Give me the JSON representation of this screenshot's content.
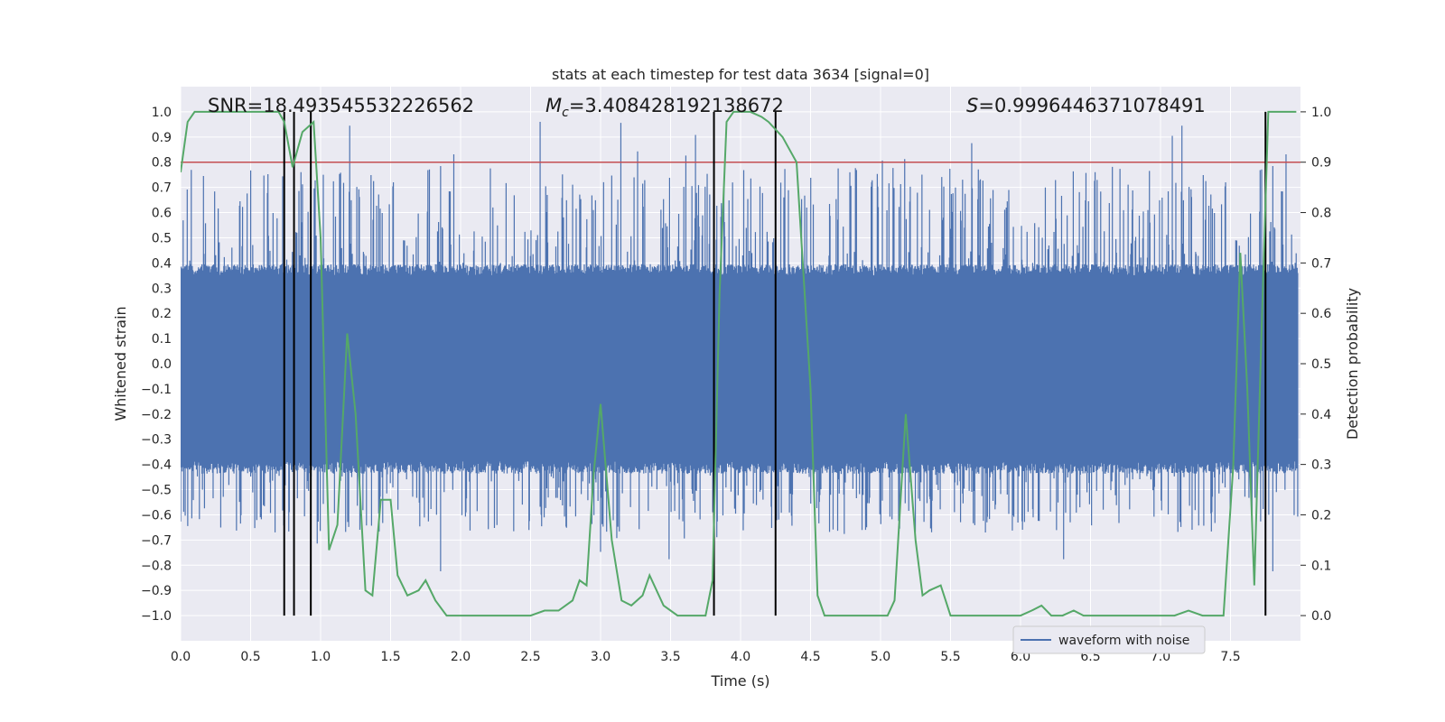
{
  "chart_data": {
    "type": "line",
    "title": "stats at each timestep for test data 3634 [signal=0]",
    "xlabel": "Time (s)",
    "ylabel_left": "Whitened strain",
    "ylabel_right": "Detection probability",
    "xlim": [
      0.0,
      8.0
    ],
    "ylim_left": [
      -1.1,
      1.1
    ],
    "ylim_right": [
      -0.05,
      1.05
    ],
    "x_ticks": [
      "0.0",
      "0.5",
      "1.0",
      "1.5",
      "2.0",
      "2.5",
      "3.0",
      "3.5",
      "4.0",
      "4.5",
      "5.0",
      "5.5",
      "6.0",
      "6.5",
      "7.0",
      "7.5"
    ],
    "y_left_ticks": [
      "1.0",
      "0.9",
      "0.8",
      "0.7",
      "0.6",
      "0.5",
      "0.4",
      "0.3",
      "0.2",
      "0.1",
      "0.0",
      "-0.1",
      "-0.2",
      "-0.3",
      "-0.4",
      "-0.5",
      "-0.6",
      "-0.7",
      "-0.8",
      "-0.9",
      "-1.0"
    ],
    "y_right_ticks": [
      "1.0",
      "0.9",
      "0.8",
      "0.7",
      "0.6",
      "0.5",
      "0.4",
      "0.3",
      "0.2",
      "0.1",
      "0.0"
    ],
    "annotations": {
      "snr": "SNR=18.493545532226562",
      "mc_symbol": "M",
      "mc_subscript": "c",
      "mc_value": "=3.408428192138672",
      "s_symbol": "S",
      "s_value": "=0.9996446371078491"
    },
    "legend": {
      "label": "waveform with noise",
      "position": "lower-right"
    },
    "threshold": {
      "value": 0.9,
      "axis": "right",
      "color": "#c44e52"
    },
    "vertical_markers": [
      0.74,
      0.81,
      0.93,
      3.81,
      4.25,
      7.75
    ],
    "series": [
      {
        "name": "waveform with noise",
        "axis": "left",
        "color": "#4c72b0",
        "kind": "noise",
        "envelope_upper": 0.38,
        "envelope_lower": -0.42,
        "spike_max": 0.97,
        "spike_min": -0.85
      },
      {
        "name": "detection probability",
        "axis": "right",
        "color": "#55a868",
        "x": [
          0.0,
          0.05,
          0.1,
          0.2,
          0.3,
          0.4,
          0.5,
          0.6,
          0.7,
          0.74,
          0.8,
          0.87,
          0.95,
          1.0,
          1.06,
          1.12,
          1.19,
          1.25,
          1.32,
          1.37,
          1.43,
          1.5,
          1.55,
          1.62,
          1.7,
          1.75,
          1.82,
          1.9,
          2.0,
          2.1,
          2.2,
          2.3,
          2.4,
          2.5,
          2.6,
          2.7,
          2.8,
          2.85,
          2.9,
          2.95,
          3.0,
          3.08,
          3.15,
          3.22,
          3.3,
          3.35,
          3.45,
          3.55,
          3.6,
          3.7,
          3.75,
          3.8,
          3.85,
          3.9,
          3.95,
          4.0,
          4.07,
          4.15,
          4.2,
          4.3,
          4.4,
          4.5,
          4.55,
          4.6,
          4.7,
          4.8,
          4.9,
          5.0,
          5.05,
          5.1,
          5.18,
          5.25,
          5.3,
          5.35,
          5.43,
          5.5,
          5.6,
          5.7,
          5.8,
          5.9,
          6.0,
          6.08,
          6.15,
          6.22,
          6.3,
          6.38,
          6.45,
          6.5,
          6.6,
          6.7,
          6.8,
          6.9,
          7.0,
          7.1,
          7.2,
          7.3,
          7.35,
          7.45,
          7.52,
          7.57,
          7.62,
          7.67,
          7.72,
          7.77,
          7.8,
          7.9,
          7.97
        ],
        "y": [
          0.88,
          0.98,
          1.0,
          1.0,
          1.0,
          1.0,
          1.0,
          1.0,
          1.0,
          0.98,
          0.89,
          0.96,
          0.98,
          0.75,
          0.13,
          0.18,
          0.56,
          0.4,
          0.05,
          0.04,
          0.23,
          0.23,
          0.08,
          0.04,
          0.05,
          0.07,
          0.03,
          0.0,
          0.0,
          0.0,
          0.0,
          0.0,
          0.0,
          0.0,
          0.01,
          0.01,
          0.03,
          0.07,
          0.06,
          0.28,
          0.42,
          0.15,
          0.03,
          0.02,
          0.04,
          0.08,
          0.02,
          0.0,
          0.0,
          0.0,
          0.0,
          0.07,
          0.64,
          0.98,
          1.0,
          1.0,
          1.0,
          0.99,
          0.98,
          0.95,
          0.9,
          0.45,
          0.04,
          0.0,
          0.0,
          0.0,
          0.0,
          0.0,
          0.0,
          0.03,
          0.4,
          0.15,
          0.04,
          0.05,
          0.06,
          0.0,
          0.0,
          0.0,
          0.0,
          0.0,
          0.0,
          0.01,
          0.02,
          0.0,
          0.0,
          0.01,
          0.0,
          0.0,
          0.0,
          0.0,
          0.0,
          0.0,
          0.0,
          0.0,
          0.01,
          0.0,
          0.0,
          0.0,
          0.3,
          0.72,
          0.45,
          0.06,
          0.55,
          1.0,
          1.0,
          1.0,
          1.0
        ]
      }
    ]
  }
}
